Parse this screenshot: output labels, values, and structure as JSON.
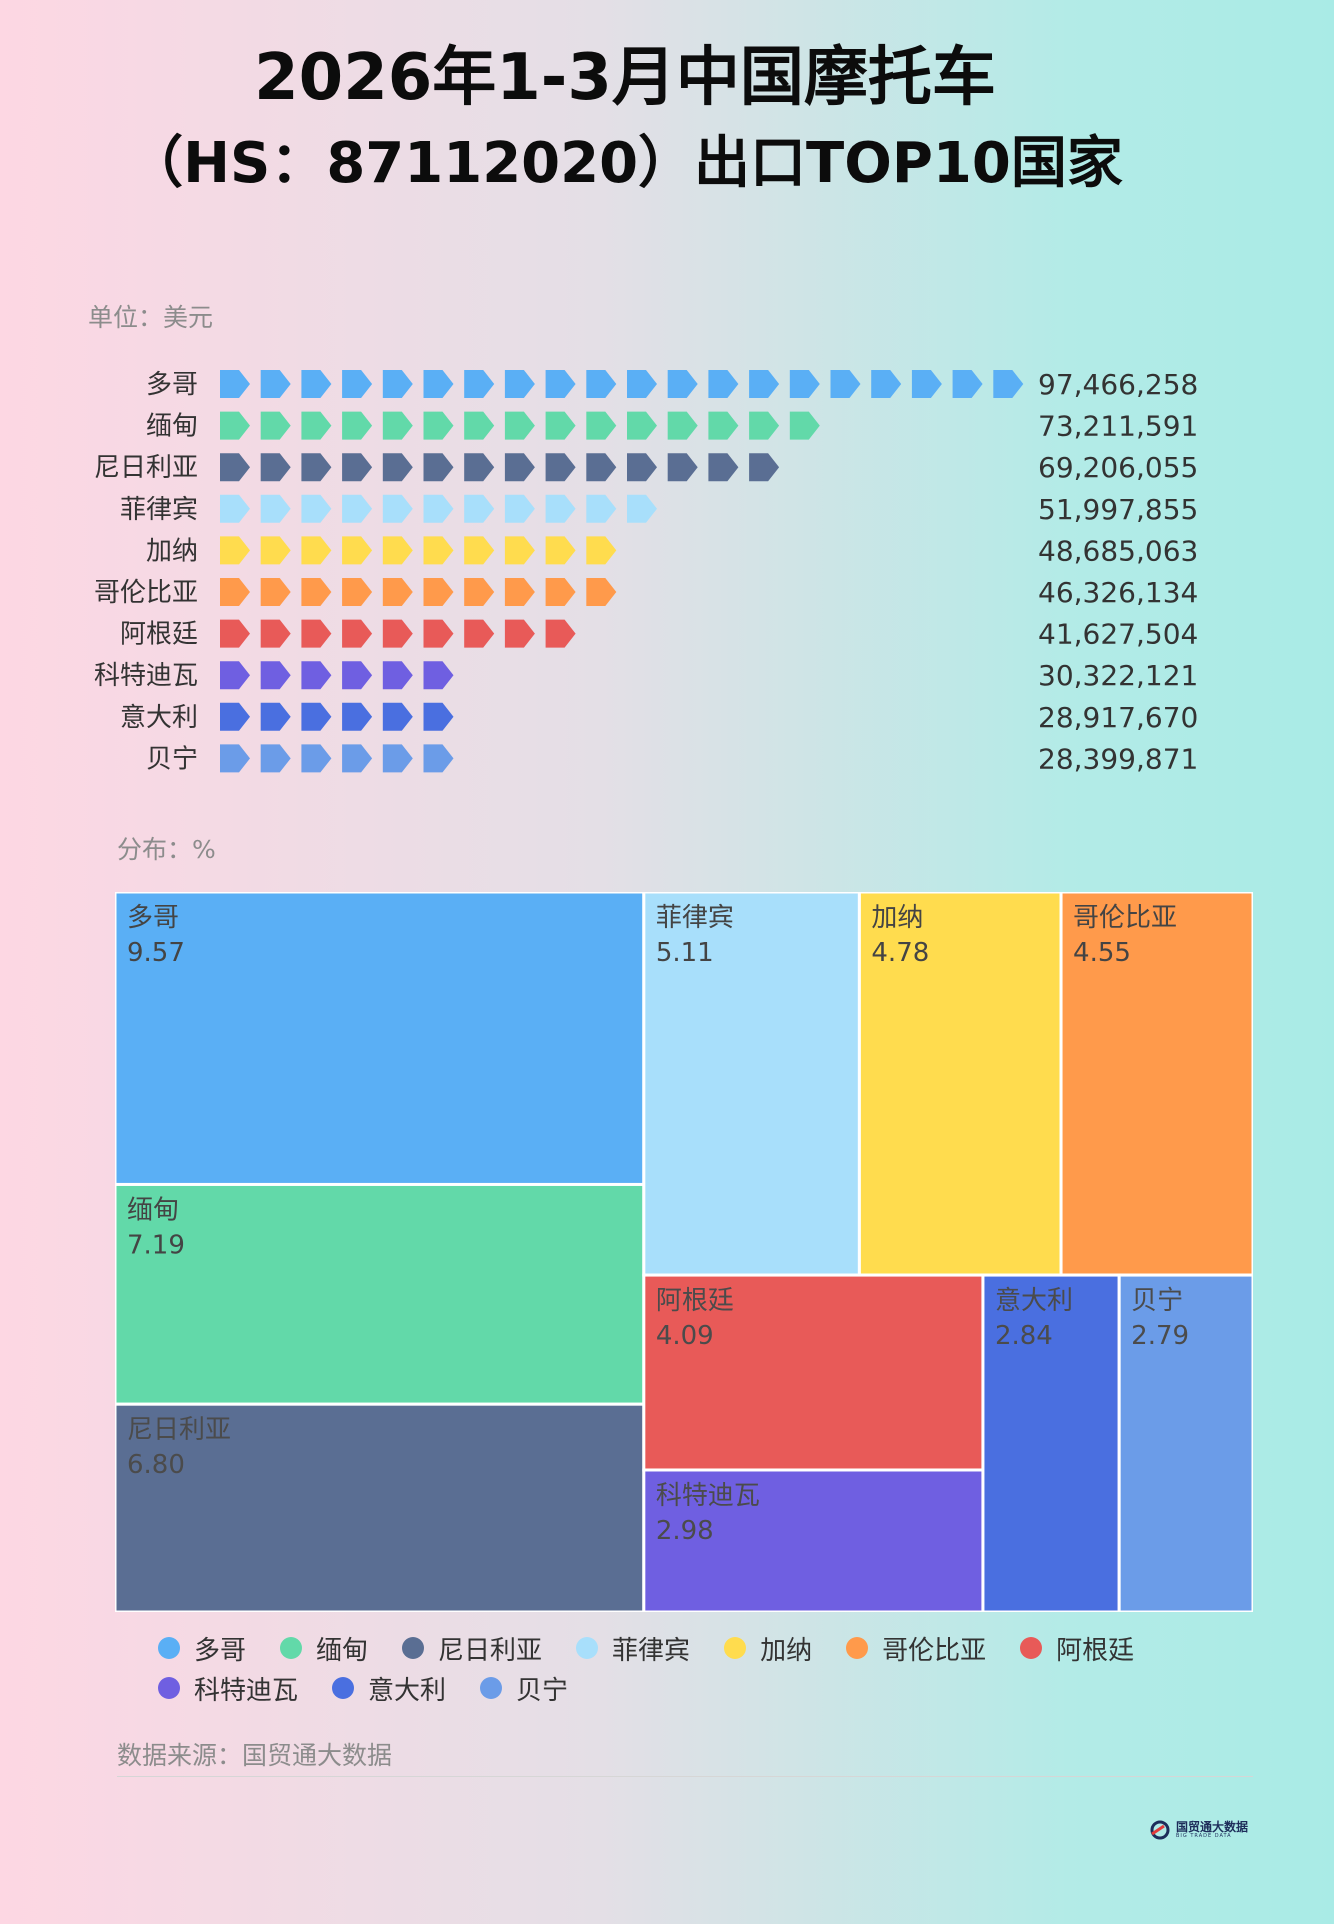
{
  "header": {
    "title_line1": "2026年1-3月中国摩托车",
    "title_line2": "（HS：87112020）出口TOP10国家"
  },
  "unit_label": "单位：美元",
  "distribution_label": "分布：%",
  "source": "数据来源：国贸通大数据",
  "logo": {
    "main": "国贸通大数据",
    "sub": "BIG TRADE DATA",
    "icon": "logo-d-icon"
  },
  "chart_data": [
    {
      "type": "bar",
      "style": "pictorial-arrow",
      "unit": "美元",
      "categories": [
        "多哥",
        "缅甸",
        "尼日利亚",
        "菲律宾",
        "加纳",
        "哥伦比亚",
        "阿根廷",
        "科特迪瓦",
        "意大利",
        "贝宁"
      ],
      "values": [
        97466258,
        73211591,
        69206055,
        51997855,
        48685063,
        46326134,
        41627504,
        30322121,
        28917670,
        28399871
      ],
      "value_labels": [
        "97,466,258",
        "73,211,591",
        "69,206,055",
        "51,997,855",
        "48,685,063",
        "46,326,134",
        "41,627,504",
        "30,322,121",
        "28,917,670",
        "28,399,871"
      ],
      "symbol_counts": [
        20,
        15,
        14,
        11,
        10,
        10,
        9,
        6,
        6,
        6
      ],
      "colors": [
        "#5aaff5",
        "#62d9a9",
        "#5a6e93",
        "#a8dffb",
        "#ffdc4e",
        "#ff9a4b",
        "#e85a58",
        "#6f5fe1",
        "#4a6fe0",
        "#6b9ce8"
      ]
    },
    {
      "type": "treemap",
      "unit": "%",
      "categories": [
        "多哥",
        "缅甸",
        "尼日利亚",
        "菲律宾",
        "加纳",
        "哥伦比亚",
        "阿根廷",
        "科特迪瓦",
        "意大利",
        "贝宁"
      ],
      "values": [
        9.57,
        7.19,
        6.8,
        5.11,
        4.78,
        4.55,
        4.09,
        2.98,
        2.84,
        2.79
      ],
      "value_labels": [
        "9.57",
        "7.19",
        "6.80",
        "5.11",
        "4.78",
        "4.55",
        "4.09",
        "2.98",
        "2.84",
        "2.79"
      ],
      "colors": [
        "#5aaff5",
        "#62d9a9",
        "#5a6e93",
        "#a8dffb",
        "#ffdc4e",
        "#ff9a4b",
        "#e85a58",
        "#6f5fe1",
        "#4a6fe0",
        "#6b9ce8"
      ],
      "legend": [
        "多哥",
        "缅甸",
        "尼日利亚",
        "菲律宾",
        "加纳",
        "哥伦比亚",
        "阿根廷",
        "科特迪瓦",
        "意大利",
        "贝宁"
      ],
      "legend_placement": "bottom"
    }
  ]
}
